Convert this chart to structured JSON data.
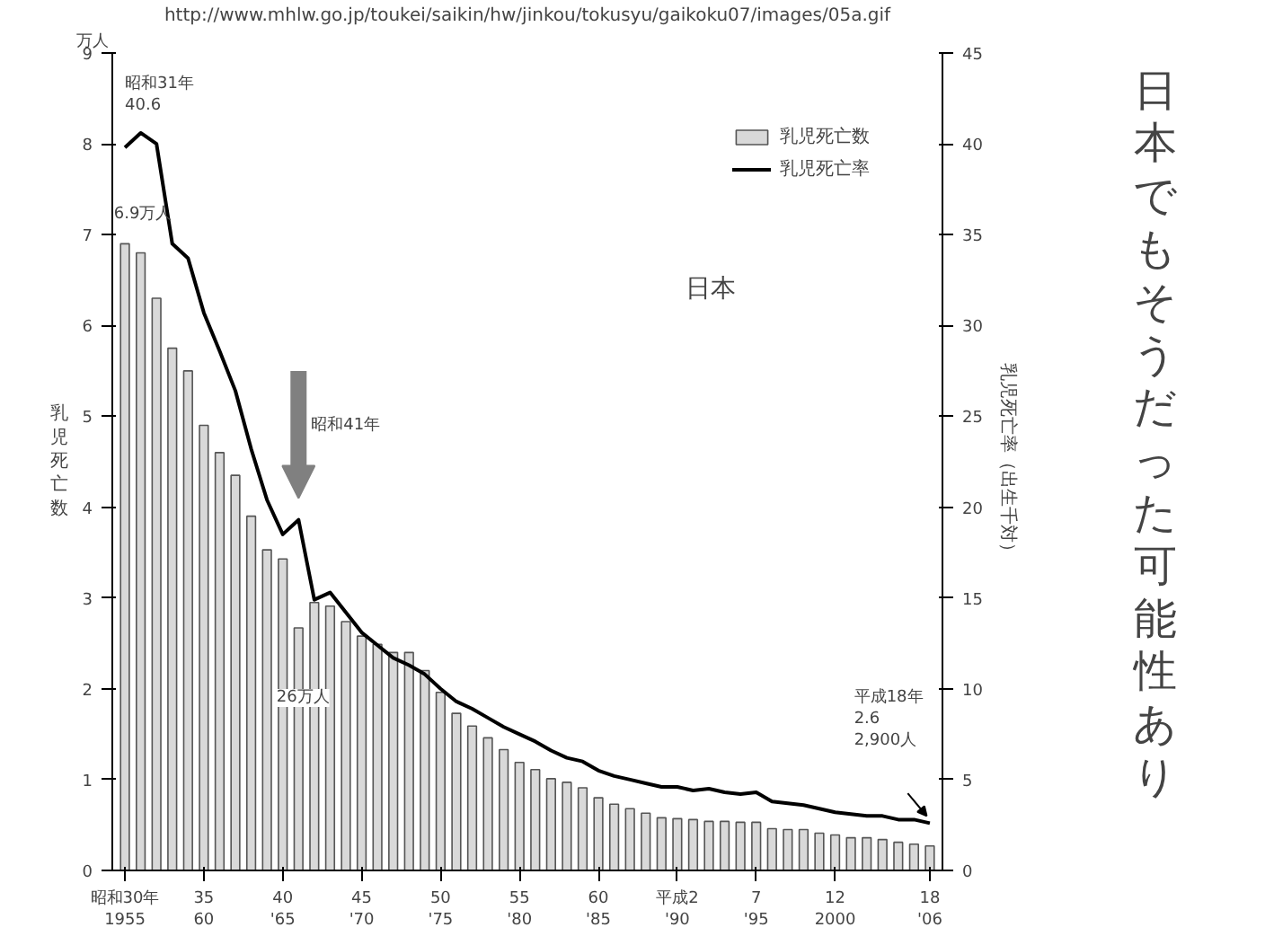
{
  "chart_data": {
    "type": "bar",
    "title": "日本でもそうだった可能性あり",
    "ylabel": "乳児死亡数",
    "y2label": "乳児死亡率（出生千対）",
    "annotations": [
      "http://www.mhlw.go.jp/toukei/saikin/hw/jinkou/tokusyu/gaikoku07/images/05a.gif",
      "万人",
      "日本",
      "昭和31年\n40.6",
      "6.9万人",
      "昭和41年",
      "26万人",
      "平成18年\n2.6\n2,900人"
    ],
    "categories": [
      "昭和30年\n1955",
      null,
      null,
      null,
      null,
      "35\n60",
      null,
      null,
      null,
      null,
      "40\n'65",
      null,
      null,
      null,
      null,
      "45\n'70",
      null,
      null,
      null,
      null,
      "50\n'75",
      null,
      null,
      null,
      null,
      "55\n'80",
      null,
      null,
      null,
      null,
      "60\n'85",
      null,
      null,
      null,
      null,
      "平成2\n'90",
      null,
      null,
      null,
      null,
      "7\n'95",
      null,
      null,
      null,
      null,
      "12\n2000",
      null,
      null,
      null,
      null,
      null,
      "18\n'06"
    ],
    "series": [
      {
        "name": "乳児死亡数",
        "color": "#d9d9d9",
        "values": [
          6.9,
          6.8,
          6.3,
          5.75,
          5.5,
          4.9,
          4.6,
          4.35,
          3.9,
          3.53,
          3.43,
          2.67,
          2.95,
          2.91,
          2.74,
          2.58,
          2.49,
          2.4,
          2.4,
          2.2,
          1.96,
          1.73,
          1.59,
          1.46,
          1.33,
          1.19,
          1.11,
          1.01,
          0.97,
          0.91,
          0.8,
          0.73,
          0.68,
          0.63,
          0.58,
          0.57,
          0.56,
          0.54,
          0.54,
          0.53,
          0.53,
          0.46,
          0.45,
          0.45,
          0.41,
          0.39,
          0.36,
          0.36,
          0.34,
          0.31,
          0.29,
          0.27
        ]
      },
      {
        "name": "乳児死亡率",
        "type": "line",
        "axis": "y2",
        "color": "#000000",
        "values": [
          39.8,
          40.6,
          40.0,
          34.5,
          33.7,
          30.7,
          28.6,
          26.4,
          23.2,
          20.4,
          18.5,
          19.3,
          14.9,
          15.3,
          14.2,
          13.1,
          12.4,
          11.7,
          11.3,
          10.8,
          10.0,
          9.3,
          8.9,
          8.4,
          7.9,
          7.5,
          7.1,
          6.6,
          6.2,
          6.0,
          5.5,
          5.2,
          5.0,
          4.8,
          4.6,
          4.6,
          4.4,
          4.5,
          4.3,
          4.2,
          4.3,
          3.8,
          3.7,
          3.6,
          3.4,
          3.2,
          3.1,
          3.0,
          3.0,
          2.8,
          2.8,
          2.6
        ]
      }
    ],
    "ylim": [
      0,
      9
    ],
    "yticks": [
      0,
      1,
      2,
      3,
      4,
      5,
      6,
      7,
      8,
      9
    ],
    "y2lim": [
      0,
      45
    ],
    "y2ticks": [
      0,
      5,
      10,
      15,
      20,
      25,
      30,
      35,
      40,
      45
    ],
    "legend": "top right"
  }
}
